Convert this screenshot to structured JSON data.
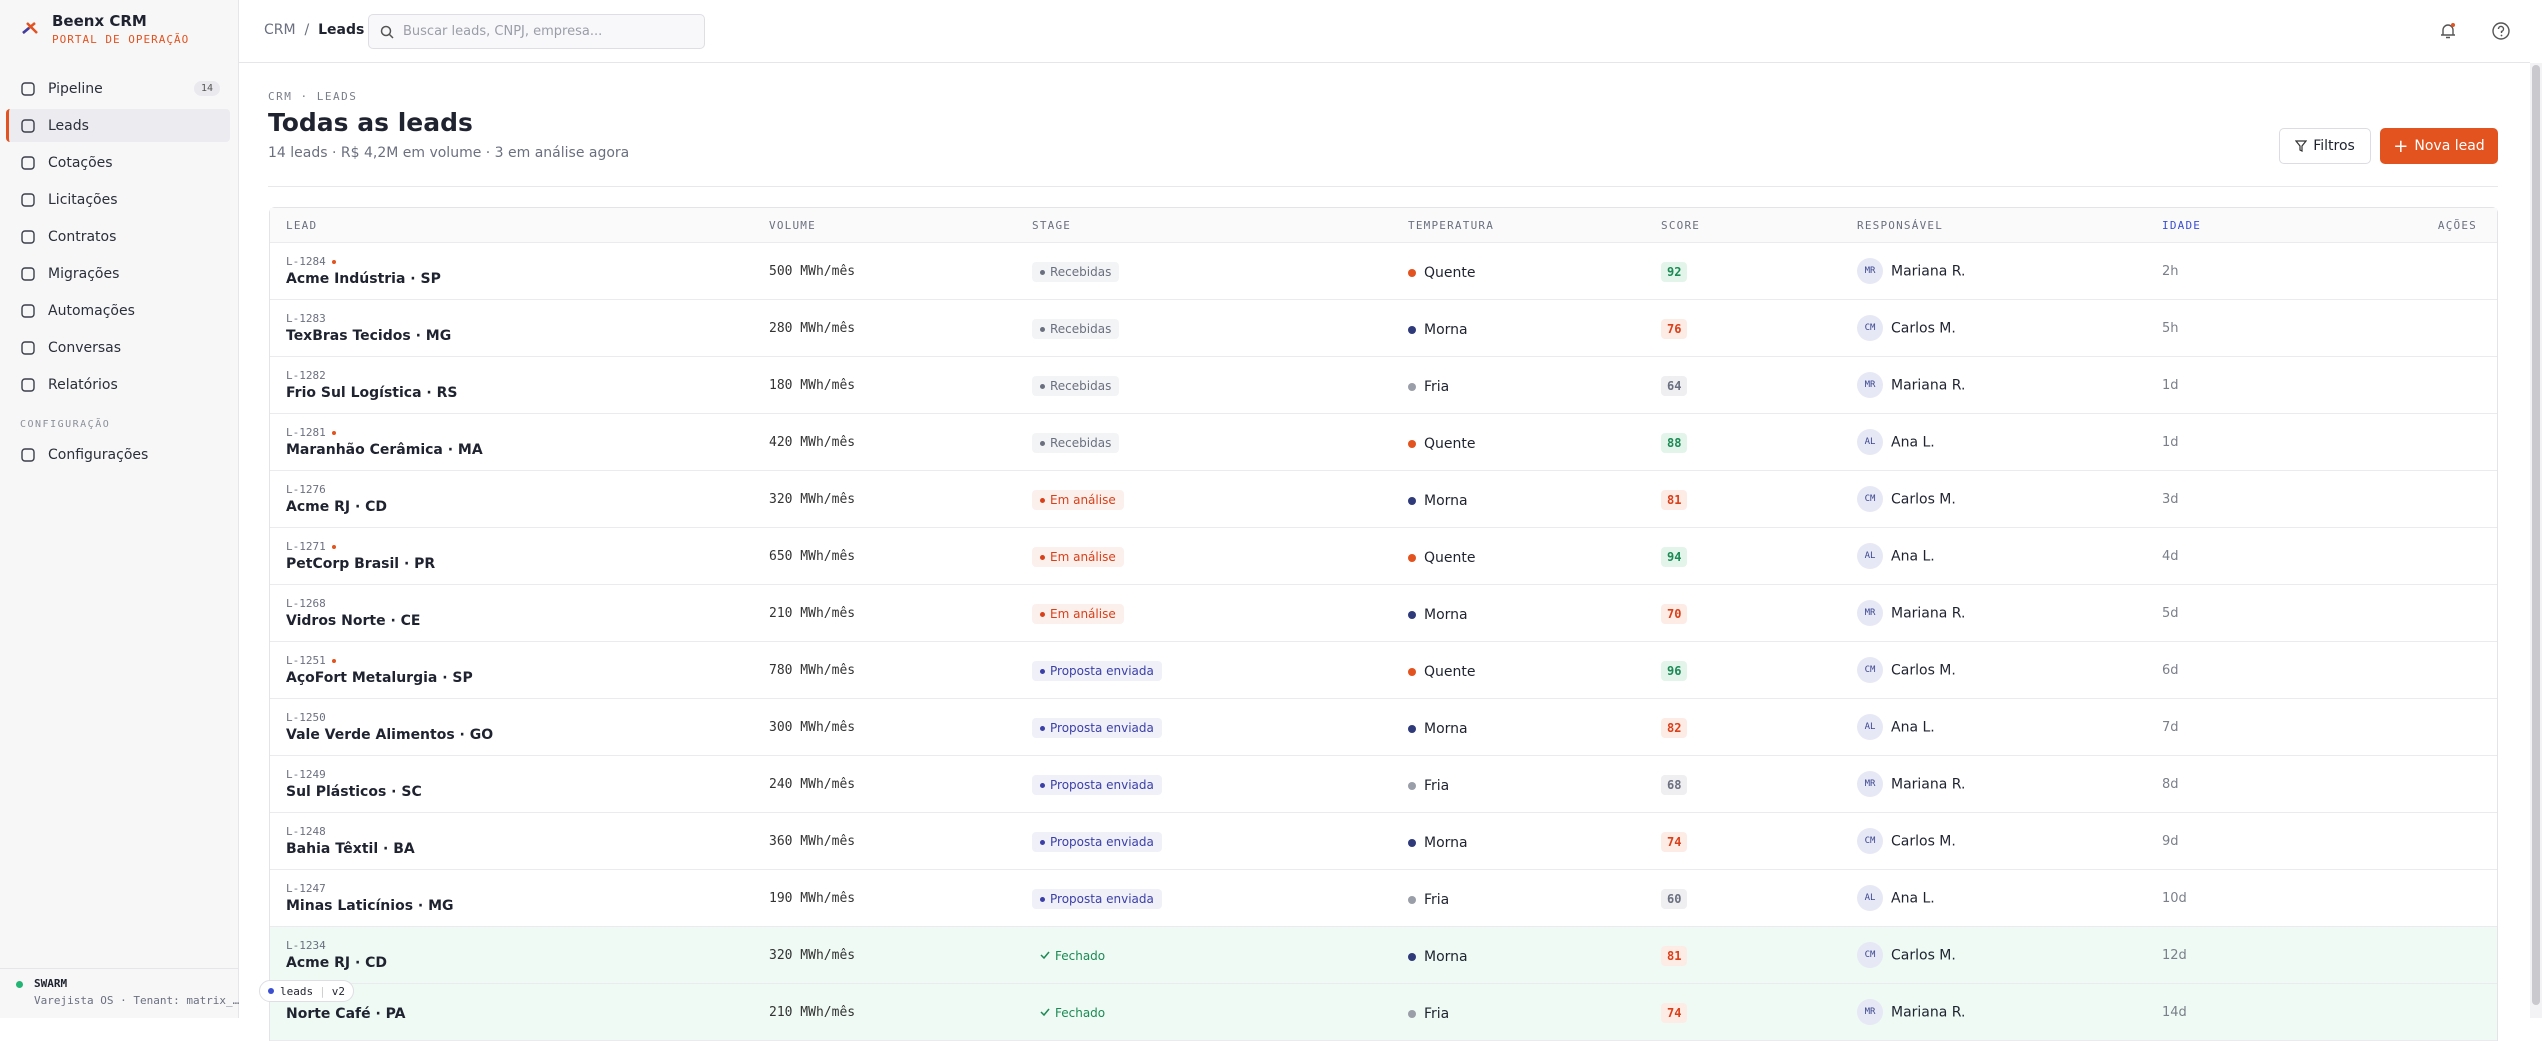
{
  "sidebar": {
    "brand": "Beenx CRM",
    "subtitle": "PORTAL DE OPERAÇÃO",
    "nav": [
      {
        "label": "Pipeline",
        "badge": 14
      },
      {
        "label": "Leads",
        "active": true
      },
      {
        "label": "Cotações"
      },
      {
        "label": "Licitações"
      },
      {
        "label": "Contratos"
      },
      {
        "label": "Migrações"
      },
      {
        "label": "Automações"
      },
      {
        "label": "Conversas"
      },
      {
        "label": "Relatórios"
      }
    ],
    "section": "CONFIGURAÇÃO",
    "config": [
      {
        "label": "Configurações"
      }
    ],
    "status": {
      "title": "SWARM",
      "text": "Varejista OS · Tenant: matrix_…"
    }
  },
  "topbar": {
    "breadcrumb": [
      "CRM",
      "Leads"
    ],
    "search_placeholder": "Buscar leads, CNPJ, empresa..."
  },
  "header": {
    "eyebrow": "CRM · LEADS",
    "title": "Todas as leads",
    "summary": "14 leads · R$ 4,2M em volume · 3 em análise agora",
    "filter_button": "Filtros",
    "new_button": "Nova lead"
  },
  "table": {
    "columns": [
      "LEAD",
      "VOLUME",
      "STAGE",
      "TEMPERATURA",
      "SCORE",
      "RESPONSÁVEL",
      "IDADE",
      "AÇÕES"
    ],
    "sorted_column": 6,
    "rows": [
      {
        "id": "L-1284",
        "hot": true,
        "name": "Acme Indústria · SP",
        "volume": "500 MWh/mês",
        "stage": "Recebidas",
        "stage_color": "#6b7080",
        "temperature": "Quente",
        "temp_color": "#e2531f",
        "score": 92,
        "initials": "MR",
        "owner": "Mariana R.",
        "age": "2h"
      },
      {
        "id": "L-1283",
        "name": "TexBras Tecidos · MG",
        "volume": "280 MWh/mês",
        "stage": "Recebidas",
        "stage_color": "#6b7080",
        "temperature": "Morna",
        "temp_color": "#2f3a7a",
        "score": 76,
        "initials": "CM",
        "owner": "Carlos M.",
        "age": "5h"
      },
      {
        "id": "L-1282",
        "name": "Frio Sul Logística · RS",
        "volume": "180 MWh/mês",
        "stage": "Recebidas",
        "stage_color": "#6b7080",
        "temperature": "Fria",
        "temp_color": "#9a9ea8",
        "score": 64,
        "initials": "MR",
        "owner": "Mariana R.",
        "age": "1d"
      },
      {
        "id": "L-1281",
        "hot": true,
        "name": "Maranhão Cerâmica · MA",
        "volume": "420 MWh/mês",
        "stage": "Recebidas",
        "stage_color": "#6b7080",
        "temperature": "Quente",
        "temp_color": "#e2531f",
        "score": 88,
        "initials": "AL",
        "owner": "Ana L.",
        "age": "1d"
      },
      {
        "id": "L-1276",
        "name": "Acme RJ · CD",
        "volume": "320 MWh/mês",
        "stage": "Em análise",
        "stage_color": "#d9401a",
        "temperature": "Morna",
        "temp_color": "#2f3a7a",
        "score": 81,
        "initials": "CM",
        "owner": "Carlos M.",
        "age": "3d"
      },
      {
        "id": "L-1271",
        "hot": true,
        "name": "PetCorp Brasil · PR",
        "volume": "650 MWh/mês",
        "stage": "Em análise",
        "stage_color": "#d9401a",
        "temperature": "Quente",
        "temp_color": "#e2531f",
        "score": 94,
        "initials": "AL",
        "owner": "Ana L.",
        "age": "4d"
      },
      {
        "id": "L-1268",
        "name": "Vidros Norte · CE",
        "volume": "210 MWh/mês",
        "stage": "Em análise",
        "stage_color": "#d9401a",
        "temperature": "Morna",
        "temp_color": "#2f3a7a",
        "score": 70,
        "initials": "MR",
        "owner": "Mariana R.",
        "age": "5d"
      },
      {
        "id": "L-1251",
        "hot": true,
        "name": "AçoFort Metalurgia · SP",
        "volume": "780 MWh/mês",
        "stage": "Proposta enviada",
        "stage_color": "#3b3fa8",
        "temperature": "Quente",
        "temp_color": "#e2531f",
        "score": 96,
        "initials": "CM",
        "owner": "Carlos M.",
        "age": "6d"
      },
      {
        "id": "L-1250",
        "name": "Vale Verde Alimentos · GO",
        "volume": "300 MWh/mês",
        "stage": "Proposta enviada",
        "stage_color": "#3b3fa8",
        "temperature": "Morna",
        "temp_color": "#2f3a7a",
        "score": 82,
        "initials": "AL",
        "owner": "Ana L.",
        "age": "7d"
      },
      {
        "id": "L-1249",
        "name": "Sul Plásticos · SC",
        "volume": "240 MWh/mês",
        "stage": "Proposta enviada",
        "stage_color": "#3b3fa8",
        "temperature": "Fria",
        "temp_color": "#9a9ea8",
        "score": 68,
        "initials": "MR",
        "owner": "Mariana R.",
        "age": "8d"
      },
      {
        "id": "L-1248",
        "name": "Bahia Têxtil · BA",
        "volume": "360 MWh/mês",
        "stage": "Proposta enviada",
        "stage_color": "#3b3fa8",
        "temperature": "Morna",
        "temp_color": "#2f3a7a",
        "score": 74,
        "initials": "CM",
        "owner": "Carlos M.",
        "age": "9d"
      },
      {
        "id": "L-1247",
        "name": "Minas Laticínios · MG",
        "volume": "190 MWh/mês",
        "stage": "Proposta enviada",
        "stage_color": "#3b3fa8",
        "temperature": "Fria",
        "temp_color": "#9a9ea8",
        "score": 60,
        "initials": "AL",
        "owner": "Ana L.",
        "age": "10d"
      },
      {
        "id": "L-1234",
        "name": "Acme RJ · CD",
        "volume": "320 MWh/mês",
        "stage": "Fechado",
        "stage_color": "#1c8a55",
        "closed": true,
        "temperature": "Morna",
        "temp_color": "#2f3a7a",
        "score": 81,
        "initials": "CM",
        "owner": "Carlos M.",
        "age": "12d"
      },
      {
        "name": "Norte Café · PA",
        "volume": "210 MWh/mês",
        "stage": "Fechado",
        "stage_color": "#1c8a55",
        "closed": true,
        "temperature": "Fria",
        "temp_color": "#9a9ea8",
        "score": 74,
        "initials": "MR",
        "owner": "Mariana R.",
        "age": "14d"
      }
    ]
  },
  "tag": {
    "name": "leads",
    "version": "v2"
  }
}
